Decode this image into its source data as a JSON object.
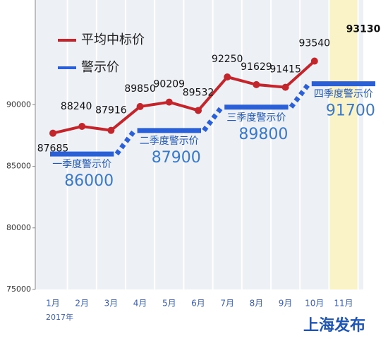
{
  "chart_data": {
    "type": "line",
    "categories": [
      "1月",
      "2月",
      "3月",
      "4月",
      "5月",
      "6月",
      "7月",
      "8月",
      "9月",
      "10月",
      "11月"
    ],
    "year_label": "2017年",
    "series": [
      {
        "name": "平均中标价",
        "color": "#c0262c",
        "values": [
          87685,
          88240,
          87916,
          89850,
          90209,
          89532,
          92250,
          91629,
          91415,
          93540,
          93130
        ]
      }
    ],
    "warning": {
      "name": "警示价",
      "color": "#2b5fd6",
      "quarters": [
        {
          "name": "一季度警示价",
          "value": 86000
        },
        {
          "name": "二季度警示价",
          "value": 87900
        },
        {
          "name": "三季度警示价",
          "value": 89800
        },
        {
          "name": "四季度警示价",
          "value": 91700
        }
      ]
    },
    "ylim": [
      75000,
      98500
    ],
    "yticks": [
      75000,
      80000,
      85000,
      90000
    ],
    "watermark": "上海发布",
    "grid": true
  }
}
